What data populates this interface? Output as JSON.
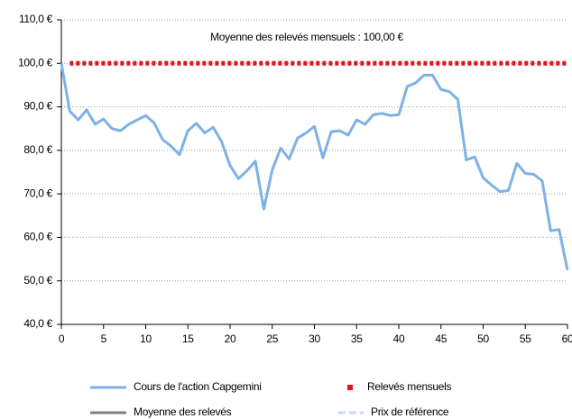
{
  "chart_data": {
    "type": "line",
    "annotation": "Moyenne des relevés mensuels : 100,00 €",
    "series": [
      {
        "name": "Cours de l'action Capgemini",
        "color": "#7eb2e6",
        "style": "solid",
        "x": [
          0,
          1,
          2,
          3,
          4,
          5,
          6,
          7,
          8,
          9,
          10,
          11,
          12,
          13,
          14,
          15,
          16,
          17,
          18,
          19,
          20,
          21,
          22,
          23,
          24,
          25,
          26,
          27,
          28,
          29,
          30,
          31,
          32,
          33,
          34,
          35,
          36,
          37,
          38,
          39,
          40,
          41,
          42,
          43,
          44,
          45,
          46,
          47,
          48,
          49,
          50,
          51,
          52,
          53,
          54,
          55,
          56,
          57,
          58,
          59,
          60
        ],
        "values": [
          100,
          89,
          87,
          89.3,
          86,
          87.2,
          85,
          84.5,
          86,
          87,
          88,
          86.3,
          82.5,
          81,
          79,
          84.5,
          86.2,
          84,
          85.3,
          82,
          76.5,
          73.5,
          75.3,
          77.5,
          66.5,
          75.5,
          80.5,
          78,
          82.8,
          84,
          85.5,
          78.3,
          84.3,
          84.5,
          83.5,
          87,
          86,
          88.2,
          88.5,
          88,
          88.2,
          94.7,
          95.5,
          97.3,
          97.3,
          94,
          93.5,
          91.7,
          77.8,
          78.5,
          73.7,
          72,
          70.5,
          70.8,
          77,
          74.7,
          74.5,
          73,
          61.5,
          61.8,
          52.5
        ]
      },
      {
        "name": "Relevés mensuels",
        "color": "#e0141c",
        "style": "dotted",
        "x": [
          1,
          60
        ],
        "values": [
          100,
          100
        ]
      },
      {
        "name": "Moyenne des relevés",
        "color": "#7f7f7f",
        "style": "solid"
      },
      {
        "name": "Prix de référence",
        "color": "#c5dcf2",
        "style": "dashed"
      }
    ],
    "xlim": [
      0,
      60
    ],
    "xticks": [
      0,
      5,
      10,
      15,
      20,
      25,
      30,
      35,
      40,
      45,
      50,
      55,
      60
    ],
    "ylim": [
      40,
      110
    ],
    "yticks": [
      {
        "value": 40,
        "label": "40,0 €"
      },
      {
        "value": 50,
        "label": "50,0 €"
      },
      {
        "value": 60,
        "label": "60,0 €"
      },
      {
        "value": 70,
        "label": "70,0 €"
      },
      {
        "value": 80,
        "label": "80,0 €"
      },
      {
        "value": 90,
        "label": "90,0 €"
      },
      {
        "value": 100,
        "label": "100,0 €"
      },
      {
        "value": 110,
        "label": "110,0 €"
      }
    ],
    "grid": true
  }
}
